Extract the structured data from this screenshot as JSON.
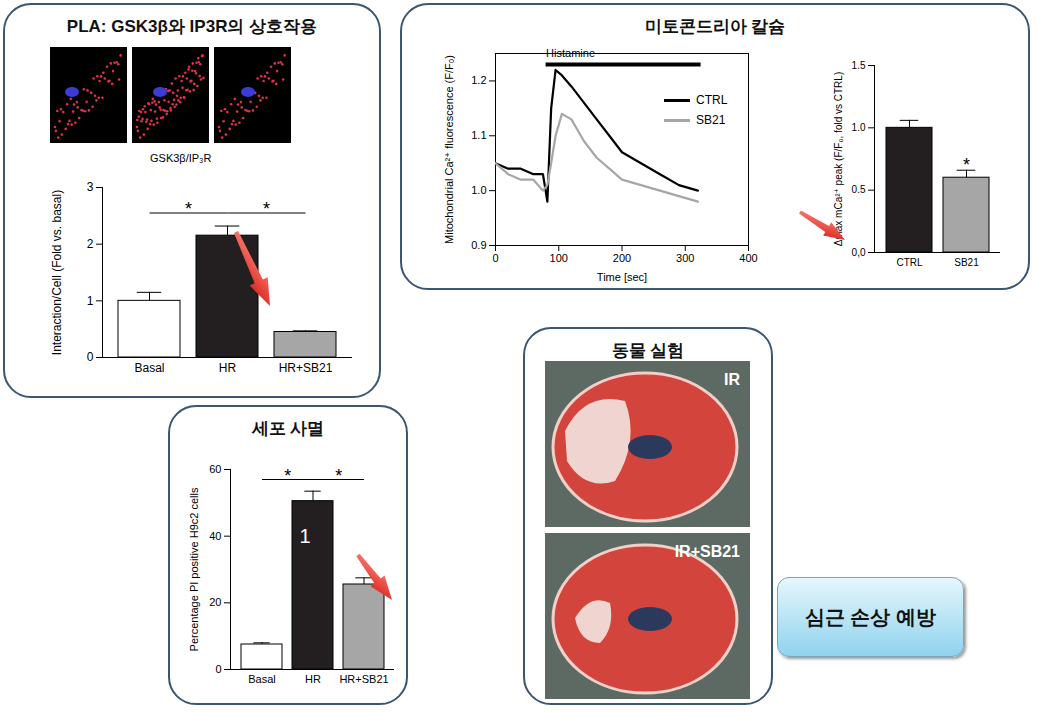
{
  "chart_data": [
    {
      "type": "bar",
      "panel_title": "PLA: GSK3β와 IP3R의 상호작용",
      "title": "GSK3β/IP₃R",
      "ylabel": "Interaction/Cell (Fold vs. basal)",
      "categories": [
        "Basal",
        "HR",
        "HR+SB21"
      ],
      "values": [
        1.0,
        2.15,
        0.45
      ],
      "errors": [
        0.15,
        0.17,
        0.02
      ],
      "colors": [
        "#ffffff",
        "#231f20",
        "#a6a6a6"
      ],
      "ylim": [
        0,
        3
      ],
      "yticks": [
        0,
        1,
        2,
        3
      ],
      "annotations": [
        {
          "text": "*",
          "from": "Basal",
          "to": "HR",
          "y": 2.55
        },
        {
          "text": "*",
          "from": "HR",
          "to": "HR+SB21",
          "y": 2.55
        }
      ]
    },
    {
      "type": "line",
      "panel_title": "미토콘드리아 칼슘",
      "xlabel": "Time [sec]",
      "ylabel": "Mitochondrial Ca²⁺ fluorescence (F/F₀)",
      "x": [
        0,
        20,
        40,
        60,
        75,
        82,
        88,
        95,
        105,
        120,
        140,
        160,
        180,
        200,
        230,
        260,
        290,
        320
      ],
      "series": [
        {
          "name": "CTRL",
          "color": "#000000",
          "values": [
            1.05,
            1.04,
            1.04,
            1.03,
            1.03,
            0.98,
            1.15,
            1.22,
            1.21,
            1.19,
            1.16,
            1.13,
            1.1,
            1.07,
            1.05,
            1.03,
            1.01,
            1.0
          ]
        },
        {
          "name": "SB21",
          "color": "#a6a6a6",
          "values": [
            1.05,
            1.03,
            1.02,
            1.02,
            1.0,
            1.01,
            1.05,
            1.1,
            1.14,
            1.13,
            1.09,
            1.06,
            1.04,
            1.02,
            1.01,
            1.0,
            0.99,
            0.98
          ]
        }
      ],
      "xlim": [
        0,
        400
      ],
      "xticks": [
        0,
        100,
        200,
        300,
        400
      ],
      "ylim": [
        0.9,
        1.25
      ],
      "yticks": [
        0.9,
        {
          "value": 1,
          "label": "1.0"
        },
        1.1,
        1.2
      ],
      "annotations": [
        {
          "text": "Histamine",
          "x": [
            80,
            325
          ],
          "y": 1.23
        }
      ]
    },
    {
      "type": "bar",
      "ylabel": "Δmax mCa²⁺ peak (F/F₀, fold vs CTRL)",
      "categories": [
        "CTRL",
        "SB21"
      ],
      "values": [
        1.0,
        0.6
      ],
      "errors": [
        0.06,
        0.06
      ],
      "colors": [
        "#231f20",
        "#a6a6a6"
      ],
      "ylim": [
        0,
        1.5
      ],
      "yticks": [
        {
          "value": 0,
          "label": "0,0"
        },
        {
          "value": 0.5,
          "label": "0.5"
        },
        {
          "value": 1,
          "label": "1.0"
        },
        {
          "value": 1.5,
          "label": "1.5"
        }
      ],
      "annotations": [
        {
          "text": "*",
          "at": "SB21",
          "y": 0.7
        }
      ]
    },
    {
      "type": "bar",
      "panel_title": "세포 사멸",
      "ylabel": "Percentage PI positive H9c2 cells",
      "categories": [
        "Basal",
        "HR",
        "HR+SB21"
      ],
      "values": [
        7.5,
        50.5,
        25.5
      ],
      "errors": [
        0.5,
        3,
        2
      ],
      "colors": [
        "#ffffff",
        "#231f20",
        "#a6a6a6"
      ],
      "ylim": [
        0,
        60
      ],
      "yticks": [
        0,
        20,
        40,
        60
      ],
      "annotations": [
        {
          "text": "*",
          "from": "Basal",
          "to": "HR",
          "y": 57
        },
        {
          "text": "*",
          "from": "HR",
          "to": "HR+SB21",
          "y": 57
        },
        {
          "text": "1",
          "at": "HR",
          "y": 40
        }
      ]
    }
  ],
  "animal_experiment": {
    "title": "동물 실험",
    "labels": [
      "IR",
      "IR+SB21"
    ]
  },
  "conclusion": "심근 손상 예방"
}
